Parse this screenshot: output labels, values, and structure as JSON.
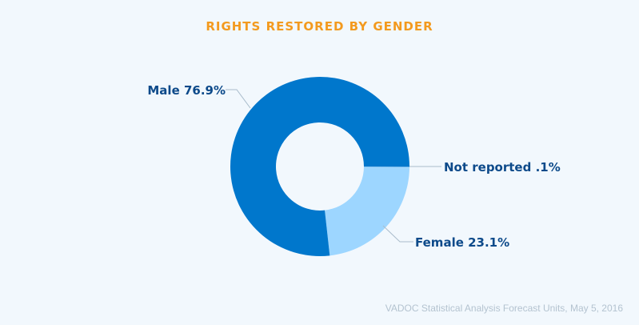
{
  "chart_data": {
    "type": "pie",
    "donut": true,
    "title": "RIGHTS RESTORED BY GENDER",
    "slices": [
      {
        "label": "Male 76.9%",
        "value": 76.9,
        "color": "#0077cc"
      },
      {
        "label": "Female 23.1%",
        "value": 23.1,
        "color": "#9dd6ff"
      },
      {
        "label": "Not reported .1%",
        "value": 0.1,
        "color": "#cfe9ff"
      }
    ],
    "source": "VADOC Statistical Analysis Forecast Units, May 5, 2016"
  }
}
